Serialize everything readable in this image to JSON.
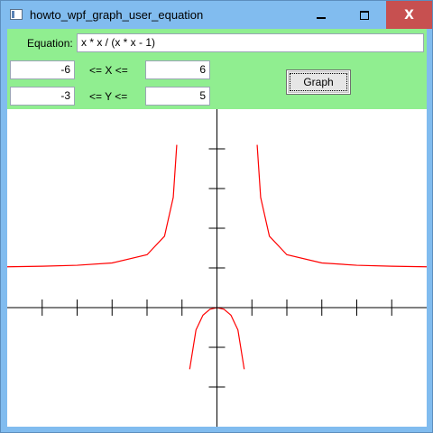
{
  "window": {
    "title": "howto_wpf_graph_user_equation",
    "icon": "app-window-icon",
    "controls": {
      "minimize_icon": "minimize-icon",
      "maximize_icon": "maximize-icon",
      "close_label": "X"
    }
  },
  "toolbar": {
    "equation_label": "Equation:",
    "equation_value": "x * x / (x * x - 1)",
    "xmin_value": "-6",
    "x_range_label": "<= X <=",
    "xmax_value": "6",
    "ymin_value": "-3",
    "y_range_label": "<= Y <=",
    "ymax_value": "5",
    "graph_button_label": "Graph",
    "background_color": "#90EE90"
  },
  "chart_data": {
    "type": "line",
    "equation": "x * x / (x * x - 1)",
    "xlim": [
      -6,
      6
    ],
    "ylim": [
      -3,
      5
    ],
    "x_ticks": [
      -5,
      -4,
      -3,
      -2,
      -1,
      1,
      2,
      3,
      4,
      5
    ],
    "y_ticks": [
      -2,
      -1,
      1,
      2,
      3,
      4
    ],
    "series": [
      {
        "color": "#FF0000",
        "segments": [
          {
            "domain": [
              -6,
              -1
            ],
            "points": [
              [
                -6,
                1.029
              ],
              [
                -5,
                1.042
              ],
              [
                -4,
                1.067
              ],
              [
                -3,
                1.125
              ],
              [
                -2,
                1.333
              ],
              [
                -1.5,
                1.8
              ],
              [
                -1.25,
                2.778
              ],
              [
                -1.15,
                4.101
              ]
            ]
          },
          {
            "domain": [
              -1,
              1
            ],
            "points": [
              [
                -0.78,
                -1.552
              ],
              [
                -0.6,
                -0.5625
              ],
              [
                -0.4,
                -0.19
              ],
              [
                -0.2,
                -0.0417
              ],
              [
                0,
                0
              ],
              [
                0.2,
                -0.0417
              ],
              [
                0.4,
                -0.19
              ],
              [
                0.6,
                -0.5625
              ],
              [
                0.78,
                -1.552
              ]
            ]
          },
          {
            "domain": [
              1,
              6
            ],
            "points": [
              [
                1.15,
                4.101
              ],
              [
                1.25,
                2.778
              ],
              [
                1.5,
                1.8
              ],
              [
                2,
                1.333
              ],
              [
                3,
                1.125
              ],
              [
                4,
                1.067
              ],
              [
                5,
                1.042
              ],
              [
                6,
                1.029
              ]
            ]
          }
        ]
      }
    ],
    "axis_color": "#000000",
    "grid": false
  }
}
